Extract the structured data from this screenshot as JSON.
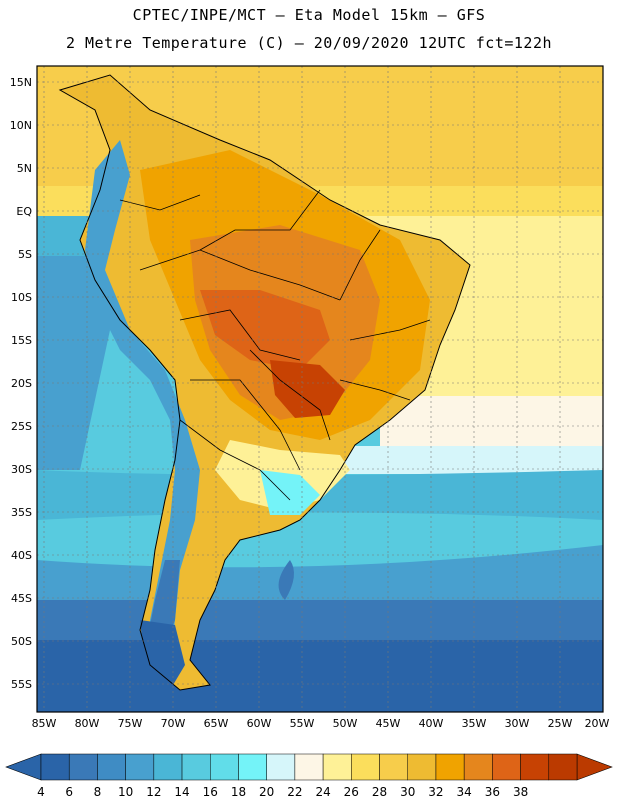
{
  "header": {
    "line1": "CPTEC/INPE/MCT –  Eta Model 15km – GFS",
    "line2": "2 Metre Temperature (C) – 20/09/2020 12UTC fct=122h"
  },
  "map": {
    "lat_labels": [
      "15N",
      "10N",
      "5N",
      "EQ",
      "5S",
      "10S",
      "15S",
      "20S",
      "25S",
      "30S",
      "35S",
      "40S",
      "45S",
      "50S",
      "55S"
    ],
    "lon_labels": [
      "85W",
      "80W",
      "75W",
      "70W",
      "65W",
      "60W",
      "55W",
      "50W",
      "45W",
      "40W",
      "35W",
      "30W",
      "25W",
      "20W"
    ]
  },
  "legend": {
    "levels": [
      "4",
      "6",
      "8",
      "10",
      "12",
      "14",
      "16",
      "18",
      "20",
      "22",
      "24",
      "26",
      "28",
      "30",
      "32",
      "34",
      "36",
      "38"
    ],
    "colors": [
      "#2a64a8",
      "#3a79b7",
      "#3f8cc4",
      "#48a0cf",
      "#4ab6d6",
      "#58cbdf",
      "#61dde9",
      "#74f3f8",
      "#d6f6fa",
      "#fdf6e6",
      "#fef197",
      "#fbde5c",
      "#f7cd4b",
      "#eebb32",
      "#f0a300",
      "#e5861d",
      "#de6417",
      "#c74203",
      "#bb3a00"
    ],
    "under_color": "#2a64a8",
    "over_color": "#bb3a00"
  }
}
